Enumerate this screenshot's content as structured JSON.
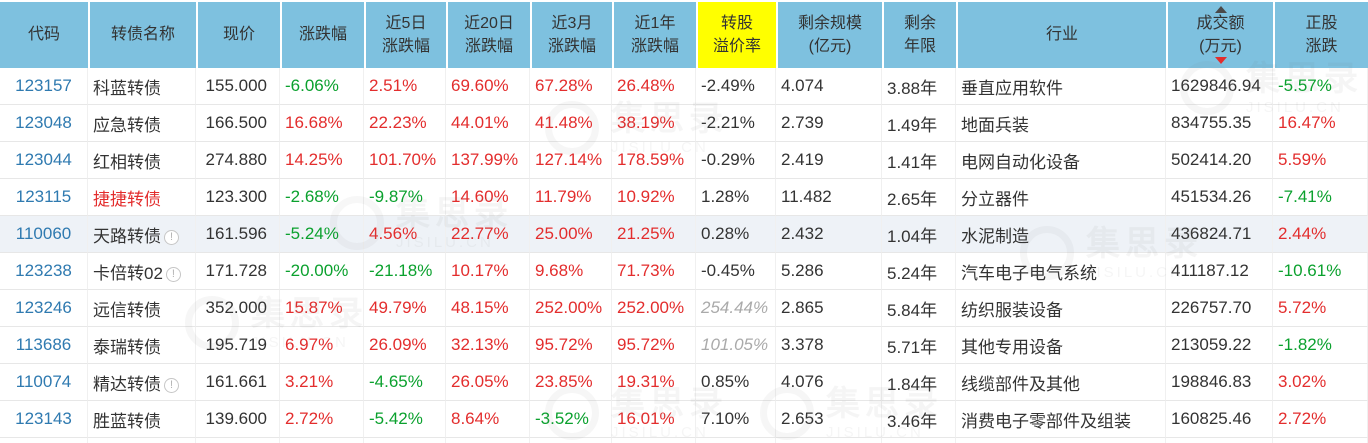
{
  "columns": [
    {
      "id": "code",
      "lines": [
        "代码"
      ],
      "align": "c"
    },
    {
      "id": "name",
      "lines": [
        "转债名称"
      ],
      "align": "l"
    },
    {
      "id": "price",
      "lines": [
        "现价"
      ],
      "align": "r"
    },
    {
      "id": "chg",
      "lines": [
        "涨跌幅"
      ],
      "align": "l"
    },
    {
      "id": "chg5d",
      "lines": [
        "近5日",
        "涨跌幅"
      ],
      "align": "l"
    },
    {
      "id": "chg20d",
      "lines": [
        "近20日",
        "涨跌幅"
      ],
      "align": "l"
    },
    {
      "id": "chg3m",
      "lines": [
        "近3月",
        "涨跌幅"
      ],
      "align": "l"
    },
    {
      "id": "chg1y",
      "lines": [
        "近1年",
        "涨跌幅"
      ],
      "align": "l"
    },
    {
      "id": "premium",
      "lines": [
        "转股",
        "溢价率"
      ],
      "align": "l",
      "highlight": true
    },
    {
      "id": "size",
      "lines": [
        "剩余规模",
        "(亿元)"
      ],
      "align": "l"
    },
    {
      "id": "years",
      "lines": [
        "剩余",
        "年限"
      ],
      "align": "l"
    },
    {
      "id": "industry",
      "lines": [
        "行业"
      ],
      "align": "l"
    },
    {
      "id": "turnover",
      "lines": [
        "成交额",
        "(万元)"
      ],
      "align": "l",
      "sorted": "desc"
    },
    {
      "id": "stock_chg",
      "lines": [
        "正股",
        "涨跌"
      ],
      "align": "l"
    }
  ],
  "signed_columns": [
    "chg",
    "chg5d",
    "chg20d",
    "chg3m",
    "chg1y",
    "stock_chg"
  ],
  "rows": [
    {
      "code": "123157",
      "name": "科蓝转债",
      "name_red": false,
      "info": false,
      "price": "155.000",
      "chg": "-6.06%",
      "chg5d": "2.51%",
      "chg20d": "69.60%",
      "chg3m": "67.28%",
      "chg1y": "26.48%",
      "premium": "-2.49%",
      "premium_muted": false,
      "size": "4.074",
      "years": "3.88年",
      "industry": "垂直应用软件",
      "turnover": "1629846.94",
      "stock_chg": "-5.57%",
      "row_hl": false
    },
    {
      "code": "123048",
      "name": "应急转债",
      "name_red": false,
      "info": false,
      "price": "166.500",
      "chg": "16.68%",
      "chg5d": "22.23%",
      "chg20d": "44.01%",
      "chg3m": "41.48%",
      "chg1y": "38.19%",
      "premium": "-2.21%",
      "premium_muted": false,
      "size": "2.739",
      "years": "1.49年",
      "industry": "地面兵装",
      "turnover": "834755.35",
      "stock_chg": "16.47%",
      "row_hl": false
    },
    {
      "code": "123044",
      "name": "红相转债",
      "name_red": false,
      "info": false,
      "price": "274.880",
      "chg": "14.25%",
      "chg5d": "101.70%",
      "chg20d": "137.99%",
      "chg3m": "127.14%",
      "chg1y": "178.59%",
      "premium": "-0.29%",
      "premium_muted": false,
      "size": "2.419",
      "years": "1.41年",
      "industry": "电网自动化设备",
      "turnover": "502414.20",
      "stock_chg": "5.59%",
      "row_hl": false
    },
    {
      "code": "123115",
      "name": "捷捷转债",
      "name_red": true,
      "info": false,
      "price": "123.300",
      "chg": "-2.68%",
      "chg5d": "-9.87%",
      "chg20d": "14.60%",
      "chg3m": "11.79%",
      "chg1y": "10.92%",
      "premium": "1.28%",
      "premium_muted": false,
      "size": "11.482",
      "years": "2.65年",
      "industry": "分立器件",
      "turnover": "451534.26",
      "stock_chg": "-7.41%",
      "row_hl": false
    },
    {
      "code": "110060",
      "name": "天路转债",
      "name_red": false,
      "info": true,
      "price": "161.596",
      "chg": "-5.24%",
      "chg5d": "4.56%",
      "chg20d": "22.77%",
      "chg3m": "25.00%",
      "chg1y": "21.25%",
      "premium": "0.28%",
      "premium_muted": false,
      "size": "2.432",
      "years": "1.04年",
      "industry": "水泥制造",
      "turnover": "436824.71",
      "stock_chg": "2.44%",
      "row_hl": true
    },
    {
      "code": "123238",
      "name": "卡倍转02",
      "name_red": false,
      "info": true,
      "price": "171.728",
      "chg": "-20.00%",
      "chg5d": "-21.18%",
      "chg20d": "10.17%",
      "chg3m": "9.68%",
      "chg1y": "71.73%",
      "premium": "-0.45%",
      "premium_muted": false,
      "size": "5.286",
      "years": "5.24年",
      "industry": "汽车电子电气系统",
      "turnover": "411187.12",
      "stock_chg": "-10.61%",
      "row_hl": false
    },
    {
      "code": "123246",
      "name": "远信转债",
      "name_red": false,
      "info": false,
      "price": "352.000",
      "chg": "15.87%",
      "chg5d": "49.79%",
      "chg20d": "48.15%",
      "chg3m": "252.00%",
      "chg1y": "252.00%",
      "premium": "254.44%",
      "premium_muted": true,
      "size": "2.865",
      "years": "5.84年",
      "industry": "纺织服装设备",
      "turnover": "226757.70",
      "stock_chg": "5.72%",
      "row_hl": false
    },
    {
      "code": "113686",
      "name": "泰瑞转债",
      "name_red": false,
      "info": false,
      "price": "195.719",
      "chg": "6.97%",
      "chg5d": "26.09%",
      "chg20d": "32.13%",
      "chg3m": "95.72%",
      "chg1y": "95.72%",
      "premium": "101.05%",
      "premium_muted": true,
      "size": "3.378",
      "years": "5.71年",
      "industry": "其他专用设备",
      "turnover": "213059.22",
      "stock_chg": "-1.82%",
      "row_hl": false
    },
    {
      "code": "110074",
      "name": "精达转债",
      "name_red": false,
      "info": true,
      "price": "161.661",
      "chg": "3.21%",
      "chg5d": "-4.65%",
      "chg20d": "26.05%",
      "chg3m": "23.85%",
      "chg1y": "19.31%",
      "premium": "0.85%",
      "premium_muted": false,
      "size": "4.076",
      "years": "1.84年",
      "industry": "线缆部件及其他",
      "turnover": "198846.83",
      "stock_chg": "3.02%",
      "row_hl": false
    },
    {
      "code": "123143",
      "name": "胜蓝转债",
      "name_red": false,
      "info": false,
      "price": "139.600",
      "chg": "2.72%",
      "chg5d": "-5.42%",
      "chg20d": "8.64%",
      "chg3m": "-3.52%",
      "chg1y": "16.01%",
      "premium": "7.10%",
      "premium_muted": false,
      "size": "2.653",
      "years": "3.46年",
      "industry": "消费电子零部件及组装",
      "turnover": "160825.46",
      "stock_chg": "2.72%",
      "row_hl": false
    }
  ],
  "icons": {
    "info_glyph": "!",
    "sort_asc": "triangle-up",
    "sort_desc": "triangle-down"
  },
  "colors": {
    "header_bg": "#7ec1df",
    "header_highlight": "#ffff00",
    "up_red": "#e32d2d",
    "down_green": "#0ba12e",
    "code_link": "#2f7ab0",
    "muted_gray": "#aaaaaa"
  },
  "watermark": {
    "text": "集思录",
    "domain": "JISILU.CN"
  }
}
